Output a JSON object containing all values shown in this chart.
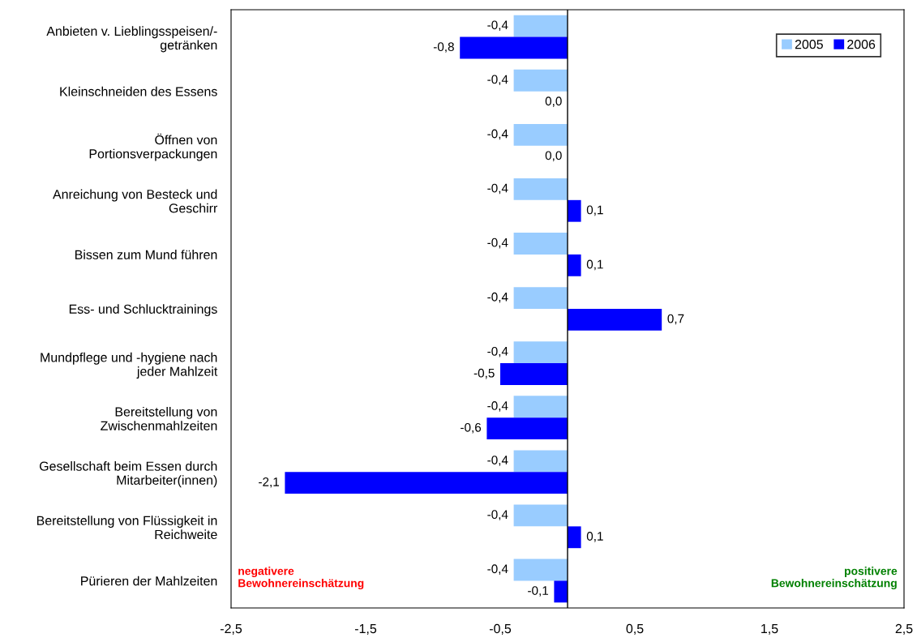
{
  "chart_data": {
    "type": "bar",
    "orientation": "horizontal",
    "categories": [
      "Anbieten v. Lieblingsspeisen/-\ngetränken",
      "Kleinschneiden des Essens",
      "Öffnen von\nPortionsverpackungen",
      "Anreichung von Besteck und\nGeschirr",
      "Bissen zum Mund führen",
      "Ess- und Schlucktrainings",
      "Mundpflege und -hygiene nach\njeder Mahlzeit",
      "Bereitstellung von\nZwischenmahlzeiten",
      "Gesellschaft beim Essen durch\nMitarbeiter(innen)",
      "Bereitstellung von Flüssigkeit in\nReichweite",
      "Pürieren der Mahlzeiten"
    ],
    "series": [
      {
        "name": "2005",
        "color": "#99ccff",
        "values": [
          -0.4,
          -0.4,
          -0.4,
          -0.4,
          -0.4,
          -0.4,
          -0.4,
          -0.4,
          -0.4,
          -0.4,
          -0.4
        ],
        "value_labels": [
          "-0,4",
          "-0,4",
          "-0,4",
          "-0,4",
          "-0,4",
          "-0,4",
          "-0,4",
          "-0,4",
          "-0,4",
          "-0,4",
          "-0,4"
        ]
      },
      {
        "name": "2006",
        "color": "#0000ff",
        "values": [
          -0.8,
          0.0,
          0.0,
          0.1,
          0.1,
          0.7,
          -0.5,
          -0.6,
          -2.1,
          0.1,
          -0.1
        ],
        "value_labels": [
          "-0,8",
          "0,0",
          "0,0",
          "0,1",
          "0,1",
          "0,7",
          "-0,5",
          "-0,6",
          "-2,1",
          "0,1",
          "-0,1"
        ]
      }
    ],
    "xlim": [
      -2.5,
      2.5
    ],
    "xticks": [
      {
        "value": -2.5,
        "label": "-2,5"
      },
      {
        "value": -1.5,
        "label": "-1,5"
      },
      {
        "value": -0.5,
        "label": "-0,5"
      },
      {
        "value": 0.5,
        "label": "0,5"
      },
      {
        "value": 1.5,
        "label": "1,5"
      },
      {
        "value": 2.5,
        "label": "2,5"
      }
    ],
    "ref_lines": [
      {
        "axis": "x",
        "value": 0,
        "color": "#000000"
      }
    ],
    "annotations": [
      "negativere\nBewohnereinschätzung",
      "positivere\nBewohnereinschätzung"
    ],
    "legend": "top right",
    "grid": false
  }
}
